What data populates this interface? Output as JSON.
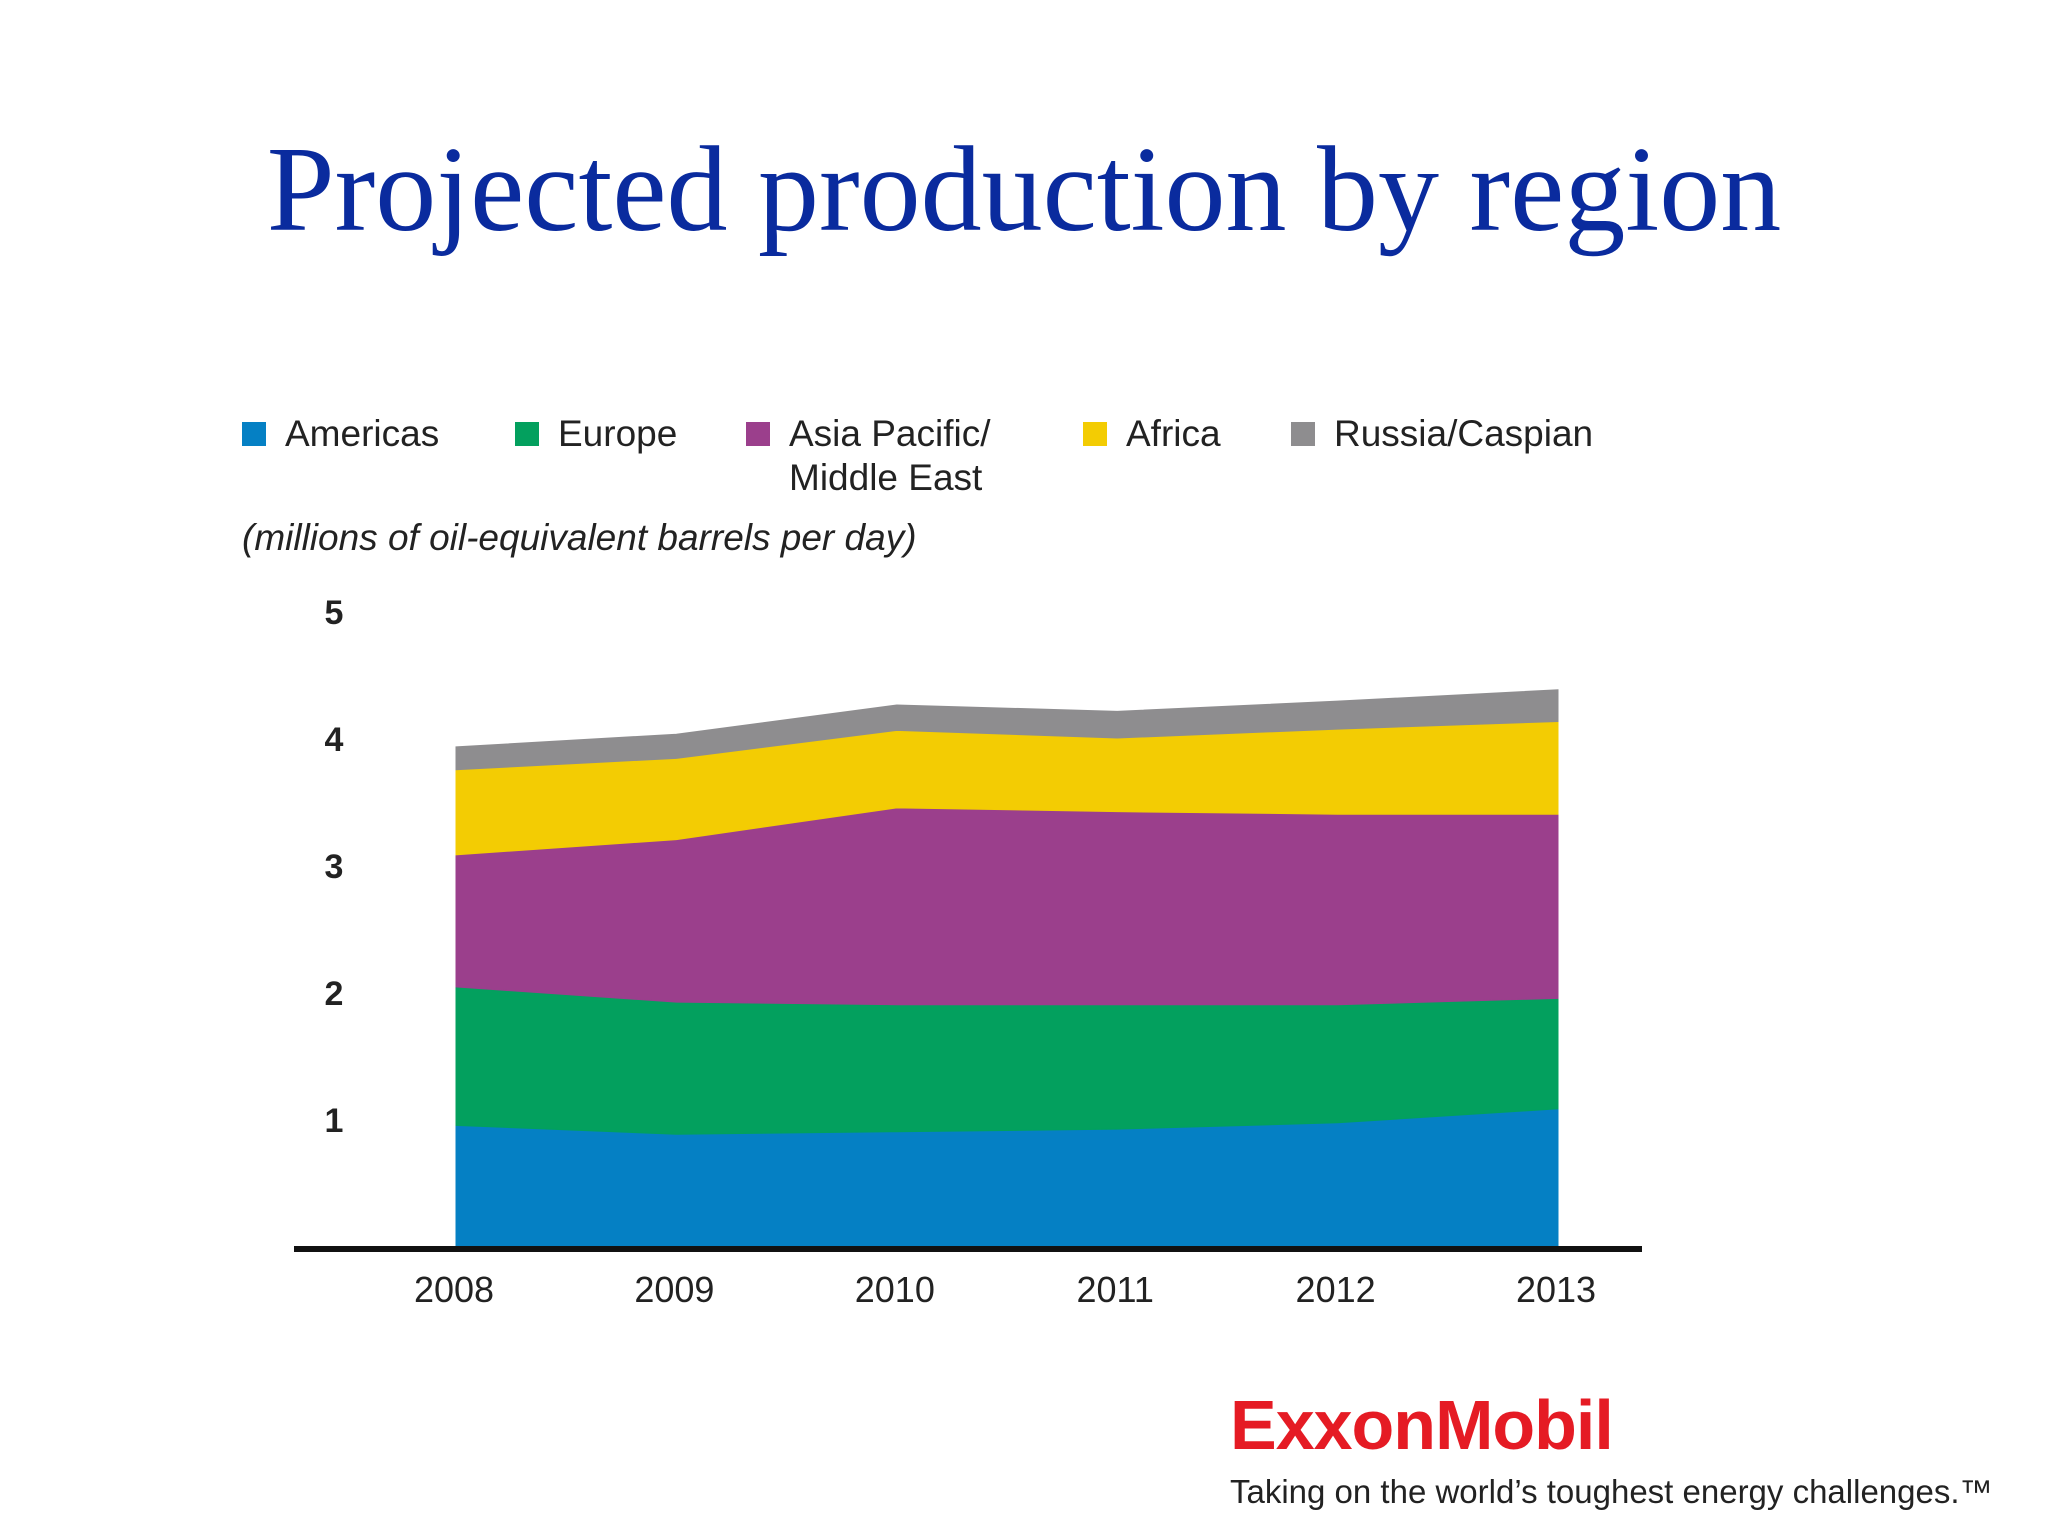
{
  "slide": {
    "title": "Projected production by region"
  },
  "brand": {
    "logo_text": "ExxonMobil",
    "tagline": "Taking on the world’s toughest energy challenges.™",
    "logo_color": "#e51b24"
  },
  "chart_data": {
    "type": "area",
    "stacked": true,
    "title": "",
    "subtitle": "(millions of oil-equivalent barrels per day)",
    "xlabel": "",
    "ylabel": "",
    "categories": [
      "2008",
      "2009",
      "2010",
      "2011",
      "2012",
      "2013"
    ],
    "ylim": [
      0,
      5
    ],
    "yticks": [
      "1",
      "2",
      "3",
      "4",
      "5"
    ],
    "grid": false,
    "legend_position": "top",
    "series": [
      {
        "name": "Americas",
        "color": "#0580c4",
        "values": [
          0.95,
          0.88,
          0.9,
          0.92,
          0.97,
          1.08
        ]
      },
      {
        "name": "Europe",
        "color": "#03a05e",
        "values": [
          1.09,
          1.04,
          1.0,
          0.98,
          0.93,
          0.87
        ]
      },
      {
        "name": "Asia Pacific/\nMiddle East",
        "color": "#9b3f8c",
        "values": [
          1.04,
          1.28,
          1.55,
          1.52,
          1.5,
          1.45
        ]
      },
      {
        "name": "Africa",
        "color": "#f3cc03",
        "values": [
          0.67,
          0.64,
          0.61,
          0.58,
          0.67,
          0.73
        ]
      },
      {
        "name": "Russia/Caspian",
        "color": "#8e8d8f",
        "values": [
          0.18,
          0.19,
          0.2,
          0.21,
          0.22,
          0.25
        ]
      }
    ]
  }
}
